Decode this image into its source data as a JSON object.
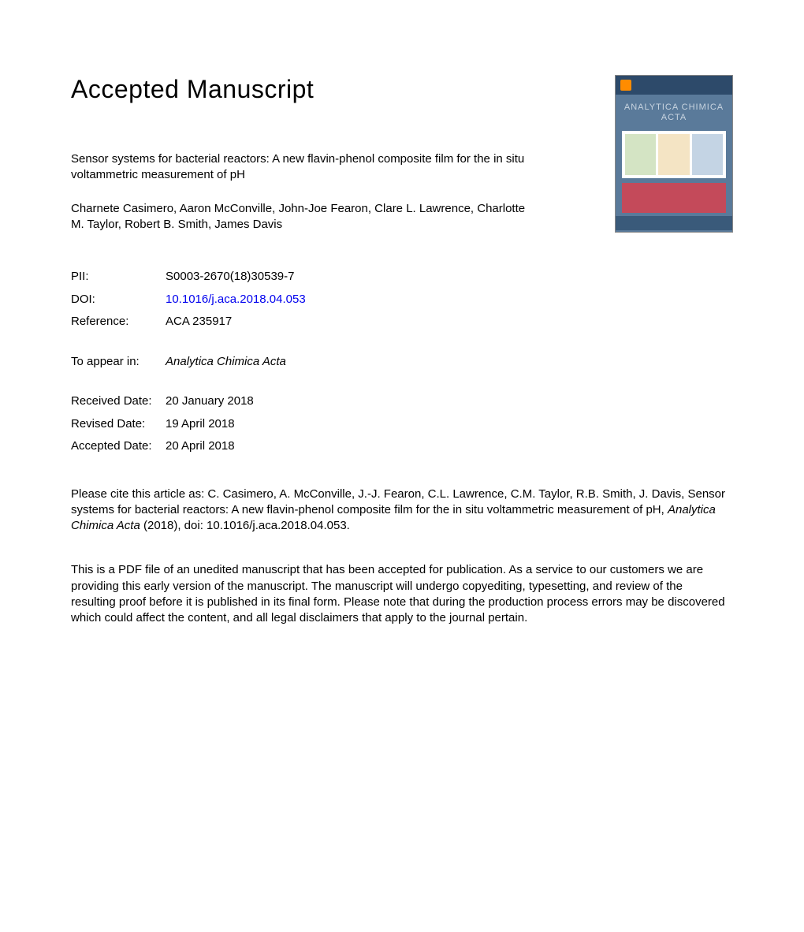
{
  "heading": "Accepted Manuscript",
  "article": {
    "title": "Sensor systems for bacterial reactors: A new flavin-phenol composite film for the in situ voltammetric measurement of pH",
    "authors": "Charnete Casimero, Aaron McConville, John-Joe Fearon, Clare L. Lawrence, Charlotte M. Taylor, Robert B. Smith, James Davis"
  },
  "info": {
    "pii_label": "PII:",
    "pii_value": "S0003-2670(18)30539-7",
    "doi_label": "DOI:",
    "doi_value": "10.1016/j.aca.2018.04.053",
    "ref_label": "Reference:",
    "ref_value": "ACA 235917",
    "appear_label": "To appear in:",
    "appear_value": "Analytica Chimica Acta",
    "received_label": "Received Date:",
    "received_value": "20 January 2018",
    "revised_label": "Revised Date:",
    "revised_value": "19 April 2018",
    "accepted_label": "Accepted Date:",
    "accepted_value": "20 April 2018"
  },
  "citation": {
    "prefix": "Please cite this article as: C. Casimero, A. McConville, J.-J. Fearon, C.L. Lawrence, C.M. Taylor, R.B. Smith, J. Davis, Sensor systems for bacterial reactors: A new flavin-phenol composite film for the in situ voltammetric measurement of pH, ",
    "journal": "Analytica Chimica Acta",
    "suffix": " (2018), doi: 10.1016/j.aca.2018.04.053."
  },
  "disclaimer": "This is a PDF file of an unedited manuscript that has been accepted for publication. As a service to our customers we are providing this early version of the manuscript. The manuscript will undergo copyediting, typesetting, and review of the resulting proof before it is published in its final form. Please note that during the production process errors may be discovered which could affect the content, and all legal disclaimers that apply to the journal pertain.",
  "cover": {
    "journal_name": "ANALYTICA CHIMICA ACTA",
    "colors": {
      "bg": "#5a7a9a",
      "top": "#2d4a6a",
      "logo": "#ff8c00",
      "title_text": "#c8d4e0",
      "bottom_band": "#c44a5a",
      "footer": "#3a5a7a"
    }
  },
  "style": {
    "body_font": "Arial",
    "heading_fontsize": 32,
    "body_fontsize": 15,
    "text_color": "#000000",
    "link_color": "#0000ee",
    "background": "#ffffff"
  }
}
